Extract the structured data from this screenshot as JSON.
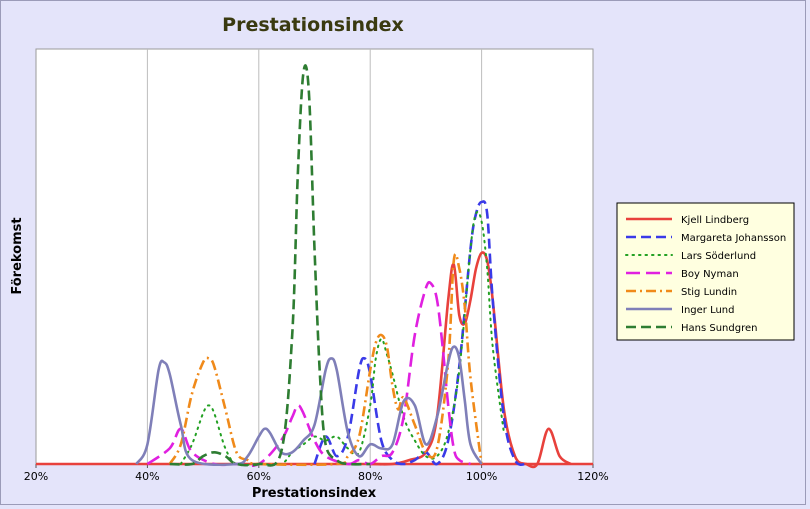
{
  "chart_data": {
    "type": "line",
    "title": "Prestationsindex",
    "xlabel": "Prestationsindex",
    "ylabel": "Förekomst",
    "xlim": [
      20,
      120
    ],
    "ylim": [
      0,
      100
    ],
    "x_ticks": [
      "20%",
      "40%",
      "60%",
      "80%",
      "100%",
      "120%"
    ],
    "x_tick_values": [
      20,
      40,
      60,
      80,
      100,
      120
    ],
    "grid": "vertical",
    "legend_position": "right",
    "series": [
      {
        "name": "Kjell Lindberg",
        "color": "#e8413c",
        "dash": "solid",
        "x": [
          80,
          84,
          87,
          90,
          92,
          94,
          95,
          96,
          97,
          98,
          99,
          100,
          101,
          102,
          104,
          106,
          108,
          110,
          112,
          114,
          116
        ],
        "y": [
          0,
          0,
          1,
          3,
          12,
          42,
          51,
          38,
          36,
          42,
          50,
          54,
          52,
          42,
          14,
          2,
          0,
          0,
          9,
          2,
          0
        ]
      },
      {
        "name": "Margareta Johansson",
        "color": "#3a3ae8",
        "dash": "dash",
        "x": [
          70,
          72,
          74,
          76,
          78,
          79,
          80,
          82,
          84,
          86,
          88,
          90,
          92,
          94,
          96,
          98,
          99,
          100,
          101,
          102,
          104,
          106,
          108
        ],
        "y": [
          0,
          7,
          2,
          7,
          24,
          27,
          23,
          6,
          1,
          0,
          1,
          3,
          0,
          6,
          25,
          55,
          64,
          67,
          64,
          42,
          12,
          1,
          0
        ]
      },
      {
        "name": "Lars Söderlund",
        "color": "#22a022",
        "dash": "dot",
        "x": [
          46,
          48,
          50,
          51,
          52,
          54,
          56,
          60,
          64,
          66,
          68,
          70,
          72,
          74,
          76,
          78,
          80,
          81,
          82,
          83,
          84,
          86,
          88,
          90,
          92,
          94,
          96,
          98,
          99,
          100,
          101,
          102,
          104
        ],
        "y": [
          0,
          5,
          13,
          15,
          13,
          4,
          0,
          0,
          0,
          3,
          5,
          7,
          6,
          7,
          4,
          3,
          15,
          27,
          32,
          28,
          23,
          12,
          6,
          2,
          2,
          8,
          24,
          55,
          64,
          62,
          50,
          30,
          8
        ]
      },
      {
        "name": "Boy Nyman",
        "color": "#e020e0",
        "dash": "longdash",
        "x": [
          40,
          44,
          46,
          48,
          52,
          56,
          60,
          64,
          66,
          67,
          68,
          70,
          72,
          76,
          78,
          80,
          82,
          84,
          86,
          88,
          90,
          91,
          92,
          93,
          94,
          95,
          96,
          98
        ],
        "y": [
          0,
          4,
          9,
          3,
          0,
          0,
          0,
          6,
          12,
          15,
          13,
          6,
          2,
          0,
          1,
          0,
          2,
          3,
          12,
          33,
          45,
          46,
          42,
          30,
          15,
          4,
          1,
          0
        ]
      },
      {
        "name": "Stig Lundin",
        "color": "#f08a1a",
        "dash": "dashdot",
        "x": [
          44,
          46,
          48,
          50,
          51,
          52,
          54,
          56,
          58,
          60,
          74,
          76,
          78,
          80,
          81,
          82,
          83,
          84,
          85,
          86,
          88,
          90,
          92,
          94,
          95,
          96,
          97,
          98,
          100
        ],
        "y": [
          0,
          5,
          18,
          26,
          27,
          25,
          14,
          3,
          1,
          0,
          0,
          2,
          7,
          24,
          31,
          33,
          30,
          20,
          14,
          17,
          10,
          3,
          4,
          26,
          52,
          50,
          40,
          22,
          0
        ]
      },
      {
        "name": "Inger Lund",
        "color": "#7f7fb8",
        "dash": "solid",
        "x": [
          38,
          40,
          42,
          43,
          44,
          46,
          48,
          56,
          58,
          60,
          61,
          62,
          64,
          66,
          68,
          70,
          72,
          73,
          74,
          76,
          78,
          80,
          82,
          84,
          86,
          88,
          90,
          92,
          94,
          95,
          96,
          97,
          98,
          100
        ],
        "y": [
          0,
          5,
          24,
          26,
          23,
          10,
          1,
          0,
          2,
          7,
          9,
          8,
          3,
          3,
          6,
          10,
          24,
          27,
          24,
          8,
          2,
          5,
          4,
          5,
          16,
          15,
          5,
          12,
          26,
          30,
          27,
          16,
          5,
          0
        ]
      },
      {
        "name": "Hans Sundgren",
        "color": "#2e7d32",
        "dash": "dash",
        "x": [
          44,
          48,
          50,
          52,
          54,
          56,
          60,
          64,
          66,
          67,
          68,
          69,
          70,
          71,
          72,
          74,
          76,
          80
        ],
        "y": [
          0,
          0,
          2,
          3,
          2,
          0,
          0,
          3,
          33,
          74,
          100,
          95,
          55,
          22,
          5,
          1,
          0,
          0
        ]
      }
    ]
  }
}
